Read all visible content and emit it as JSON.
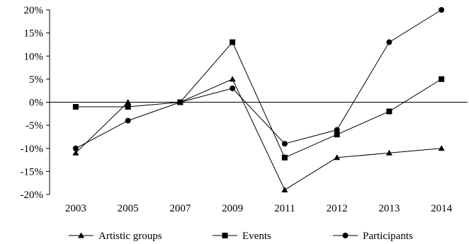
{
  "chart_data": {
    "type": "line",
    "title": "",
    "xlabel": "",
    "ylabel": "",
    "categories": [
      "2003",
      "2005",
      "2007",
      "2009",
      "2011",
      "2012",
      "2013",
      "2014"
    ],
    "ylim": [
      -20,
      20
    ],
    "yticks": [
      20,
      15,
      10,
      5,
      0,
      -5,
      -10,
      -15,
      -20
    ],
    "ytick_labels": [
      "20%",
      "15%",
      "10%",
      "5%",
      "0%",
      "-5%",
      "-10%",
      "-15%",
      "-20%"
    ],
    "grid": false,
    "legend_position": "bottom",
    "series": [
      {
        "name": "Artistic groups",
        "marker": "triangle",
        "color": "#000000",
        "values": [
          -11,
          0,
          0,
          5,
          -19,
          -12,
          -11,
          -10
        ]
      },
      {
        "name": "Events",
        "marker": "square",
        "color": "#000000",
        "values": [
          -1,
          -1,
          0,
          13,
          -12,
          -7,
          -2,
          5
        ]
      },
      {
        "name": "Participants",
        "marker": "circle",
        "color": "#000000",
        "values": [
          -10,
          -4,
          0,
          3,
          -9,
          -6,
          13,
          20
        ]
      }
    ]
  }
}
